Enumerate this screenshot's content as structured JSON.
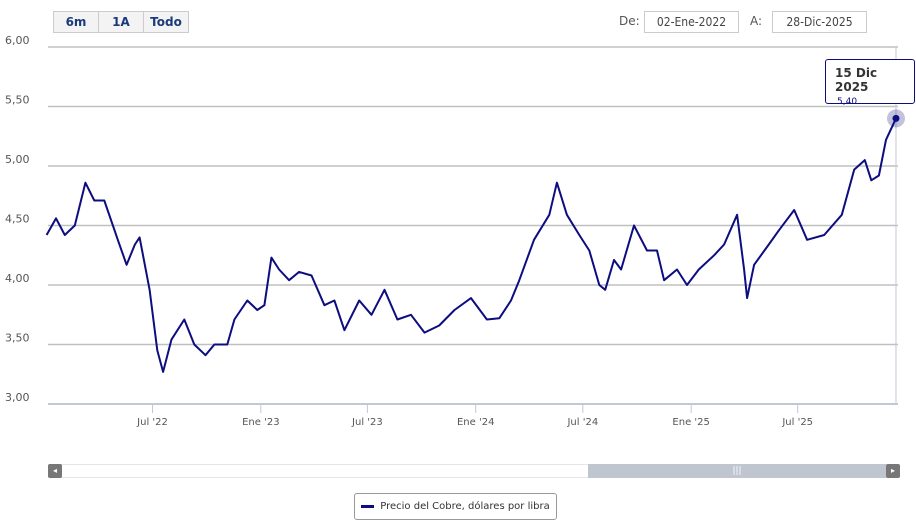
{
  "range_selector": {
    "buttons": [
      "6m",
      "1A",
      "Todo"
    ]
  },
  "date_range": {
    "from_label": "De:",
    "from_value": "02-Ene-2022",
    "to_label": "A:",
    "to_value": "28-Dic-2025"
  },
  "tooltip": {
    "date": "15 Dic 2025",
    "value": "5,40"
  },
  "colors": {
    "series": "#0d0d80",
    "grid": "#c0c0c0",
    "scroll_thumb": "#c0c6d0"
  },
  "chart_data": {
    "type": "line",
    "legend": "bottom-center",
    "grid": true,
    "ylim": [
      3.0,
      6.0
    ],
    "yticks": [
      "3,00",
      "3,50",
      "4,00",
      "4,50",
      "5,00",
      "5,50",
      "6,00"
    ],
    "xticks": [
      {
        "label": "Jul '22",
        "date": "2022-07-01"
      },
      {
        "label": "Ene '23",
        "date": "2023-01-01"
      },
      {
        "label": "Jul '23",
        "date": "2023-07-01"
      },
      {
        "label": "Ene '24",
        "date": "2024-01-01"
      },
      {
        "label": "Jul '24",
        "date": "2024-07-01"
      },
      {
        "label": "Ene '25",
        "date": "2025-01-01"
      },
      {
        "label": "Jul '25",
        "date": "2025-07-01"
      }
    ],
    "xlim": [
      "2022-01-01",
      "2025-12-28"
    ],
    "series": [
      {
        "name": "Precio del Cobre, dólares por libra",
        "points": [
          [
            "2022-01-02",
            4.42
          ],
          [
            "2022-01-18",
            4.56
          ],
          [
            "2022-02-02",
            4.42
          ],
          [
            "2022-02-19",
            4.5
          ],
          [
            "2022-03-09",
            4.86
          ],
          [
            "2022-03-24",
            4.71
          ],
          [
            "2022-04-10",
            4.71
          ],
          [
            "2022-05-03",
            4.38
          ],
          [
            "2022-05-18",
            4.17
          ],
          [
            "2022-06-01",
            4.34
          ],
          [
            "2022-06-09",
            4.4
          ],
          [
            "2022-06-26",
            3.96
          ],
          [
            "2022-07-09",
            3.45
          ],
          [
            "2022-07-19",
            3.27
          ],
          [
            "2022-08-02",
            3.54
          ],
          [
            "2022-08-24",
            3.71
          ],
          [
            "2022-09-10",
            3.5
          ],
          [
            "2022-09-29",
            3.41
          ],
          [
            "2022-10-14",
            3.5
          ],
          [
            "2022-11-05",
            3.5
          ],
          [
            "2022-11-17",
            3.71
          ],
          [
            "2022-12-09",
            3.87
          ],
          [
            "2022-12-26",
            3.79
          ],
          [
            "2023-01-07",
            3.83
          ],
          [
            "2023-01-19",
            4.23
          ],
          [
            "2023-02-01",
            4.13
          ],
          [
            "2023-02-18",
            4.04
          ],
          [
            "2023-03-07",
            4.11
          ],
          [
            "2023-03-28",
            4.08
          ],
          [
            "2023-04-19",
            3.83
          ],
          [
            "2023-05-06",
            3.87
          ],
          [
            "2023-05-23",
            3.62
          ],
          [
            "2023-06-17",
            3.87
          ],
          [
            "2023-07-08",
            3.75
          ],
          [
            "2023-07-30",
            3.96
          ],
          [
            "2023-08-21",
            3.71
          ],
          [
            "2023-09-13",
            3.75
          ],
          [
            "2023-10-06",
            3.6
          ],
          [
            "2023-10-31",
            3.66
          ],
          [
            "2023-11-26",
            3.79
          ],
          [
            "2023-12-24",
            3.89
          ],
          [
            "2024-01-20",
            3.71
          ],
          [
            "2024-02-10",
            3.72
          ],
          [
            "2024-03-01",
            3.87
          ],
          [
            "2024-03-15",
            4.04
          ],
          [
            "2024-04-09",
            4.38
          ],
          [
            "2024-05-05",
            4.59
          ],
          [
            "2024-05-18",
            4.86
          ],
          [
            "2024-06-04",
            4.59
          ],
          [
            "2024-06-25",
            4.42
          ],
          [
            "2024-07-12",
            4.29
          ],
          [
            "2024-07-29",
            4.0
          ],
          [
            "2024-08-08",
            3.96
          ],
          [
            "2024-08-23",
            4.21
          ],
          [
            "2024-09-04",
            4.13
          ],
          [
            "2024-09-26",
            4.5
          ],
          [
            "2024-10-18",
            4.29
          ],
          [
            "2024-11-04",
            4.29
          ],
          [
            "2024-11-16",
            4.04
          ],
          [
            "2024-12-08",
            4.13
          ],
          [
            "2024-12-25",
            4.0
          ],
          [
            "2025-01-14",
            4.13
          ],
          [
            "2025-02-09",
            4.25
          ],
          [
            "2025-02-26",
            4.34
          ],
          [
            "2025-03-20",
            4.59
          ],
          [
            "2025-04-01",
            4.13
          ],
          [
            "2025-04-06",
            3.89
          ],
          [
            "2025-04-18",
            4.17
          ],
          [
            "2025-05-13",
            4.34
          ],
          [
            "2025-05-30",
            4.46
          ],
          [
            "2025-06-25",
            4.63
          ],
          [
            "2025-07-17",
            4.38
          ],
          [
            "2025-08-15",
            4.42
          ],
          [
            "2025-09-14",
            4.59
          ],
          [
            "2025-10-05",
            4.97
          ],
          [
            "2025-10-23",
            5.05
          ],
          [
            "2025-11-03",
            4.88
          ],
          [
            "2025-11-16",
            4.92
          ],
          [
            "2025-11-28",
            5.22
          ],
          [
            "2025-12-15",
            5.4
          ]
        ]
      }
    ]
  }
}
